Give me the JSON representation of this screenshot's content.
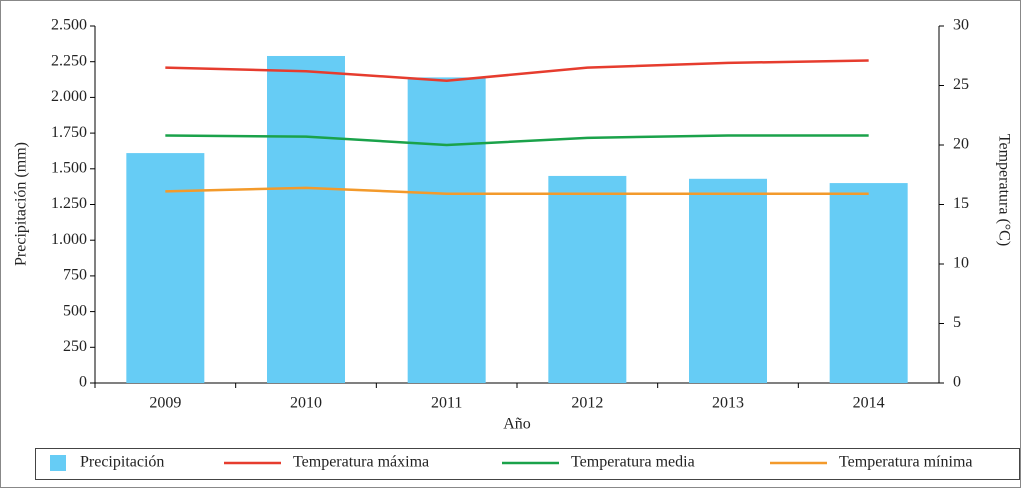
{
  "chart_data": {
    "type": "bar_line",
    "categories": [
      "2009",
      "2010",
      "2011",
      "2012",
      "2013",
      "2014"
    ],
    "xlabel": "Año",
    "ylabel": "Precipitación (mm)",
    "y2label": "Temperatura (°C)",
    "series": [
      {
        "name": "Precipitación",
        "type": "bar",
        "color": "#66ccf5",
        "values": [
          1610,
          2290,
          2140,
          1450,
          1430,
          1400
        ]
      },
      {
        "name": "Temperatura máxima",
        "type": "line",
        "axis": "y2",
        "color": "#e63c2e",
        "values": [
          26.5,
          26.2,
          25.4,
          26.5,
          26.9,
          27.1
        ]
      },
      {
        "name": "Temperatura media",
        "type": "line",
        "axis": "y2",
        "color": "#1aa24a",
        "values": [
          20.8,
          20.7,
          20.0,
          20.6,
          20.8,
          20.8
        ]
      },
      {
        "name": "Temperatura mínima",
        "type": "line",
        "axis": "y2",
        "color": "#f39a2b",
        "values": [
          16.1,
          16.4,
          15.9,
          15.9,
          15.9,
          15.9
        ]
      }
    ],
    "ylim": [
      0,
      2500
    ],
    "yticks": [
      0,
      250,
      500,
      750,
      {
        "value": 1000,
        "label": "1.000"
      },
      {
        "value": 1250,
        "label": "1.250"
      },
      {
        "value": 1500,
        "label": "1.500"
      },
      {
        "value": 1750,
        "label": "1.750"
      },
      {
        "value": 2000,
        "label": "2.000"
      },
      {
        "value": 2250,
        "label": "2.250"
      },
      {
        "value": 2500,
        "label": "2.500"
      }
    ],
    "y2lim": [
      0,
      30
    ],
    "y2ticks": [
      0,
      5,
      10,
      15,
      20,
      25,
      30
    ],
    "legend": "bottom"
  }
}
